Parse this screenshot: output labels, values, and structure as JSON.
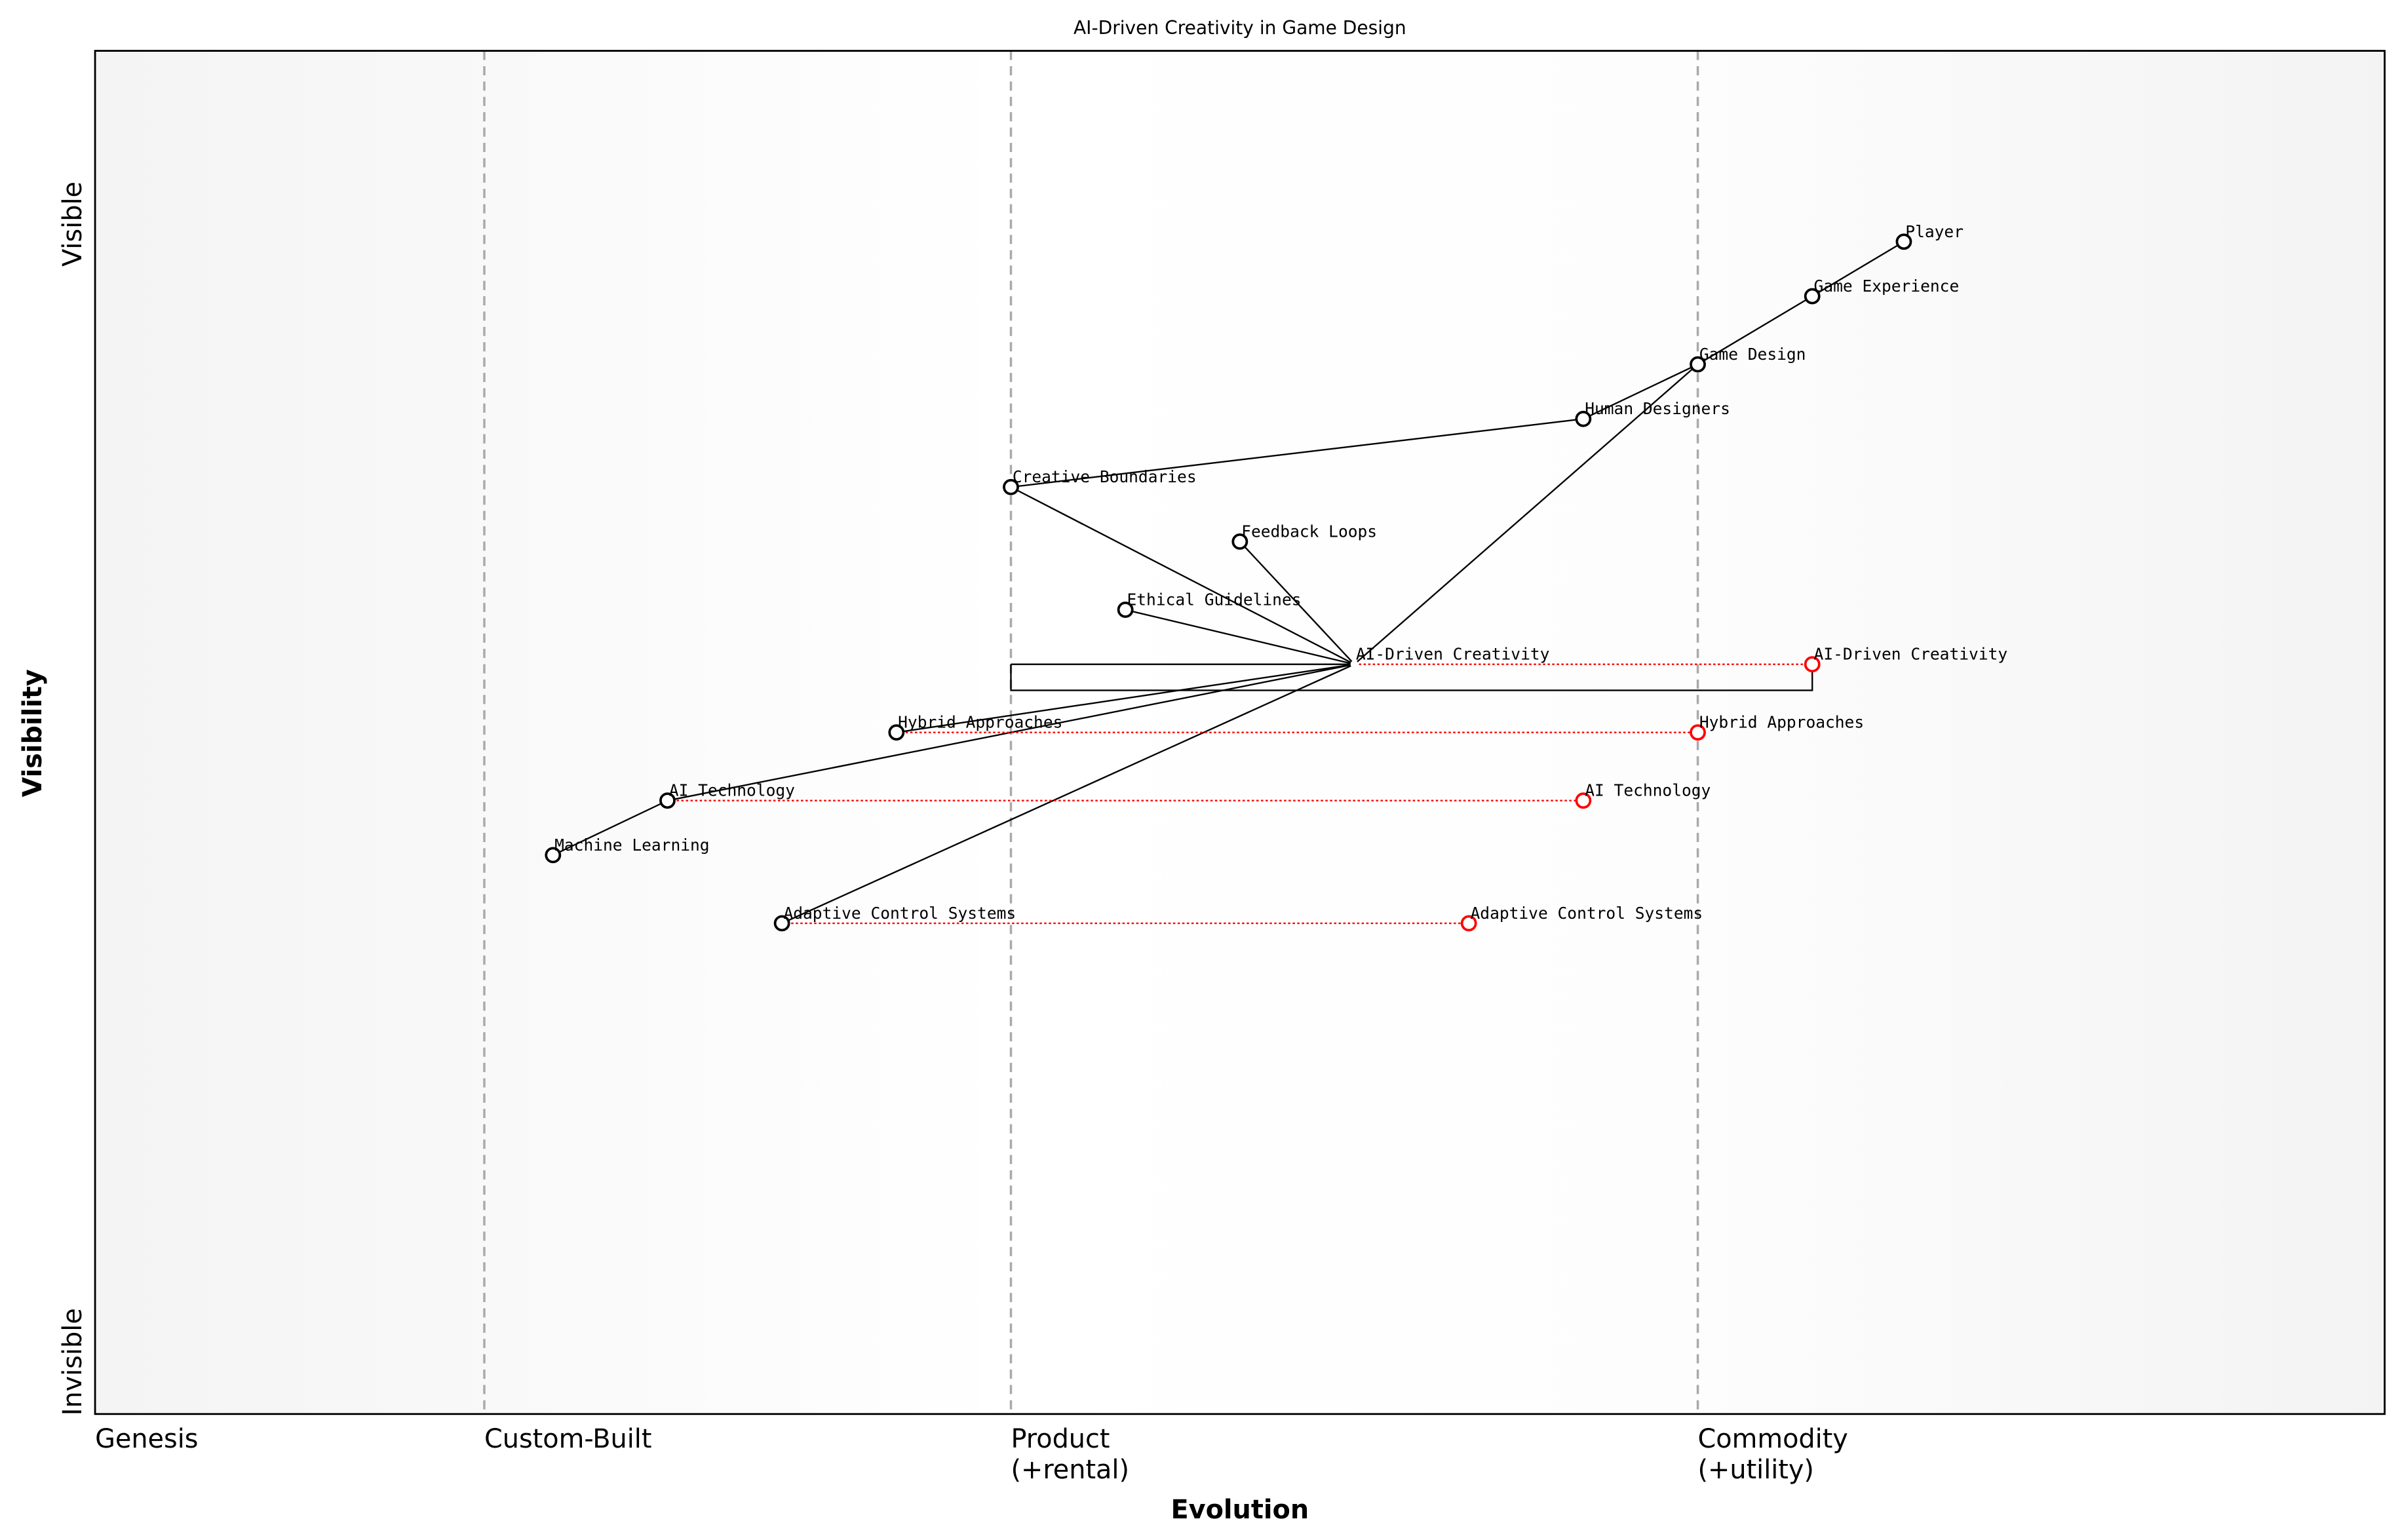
{
  "chart_data": {
    "type": "wardley-map",
    "title": "AI-Driven Creativity in Game Design",
    "xlabel": "Evolution",
    "ylabel": "Visibility",
    "y_ticks": {
      "low": "Invisible",
      "high": "Visible"
    },
    "stages": [
      {
        "label": "Genesis",
        "start": 0.0
      },
      {
        "label": "Custom-Built",
        "start": 0.17
      },
      {
        "label": "Product\n(+rental)",
        "start": 0.4
      },
      {
        "label": "Commodity\n(+utility)",
        "start": 0.7
      }
    ],
    "xlim": [
      0,
      1
    ],
    "ylim": [
      0,
      1
    ],
    "components": [
      {
        "name": "Player",
        "evolution": 0.79,
        "visibility": 0.86
      },
      {
        "name": "Game Experience",
        "evolution": 0.75,
        "visibility": 0.82
      },
      {
        "name": "Game Design",
        "evolution": 0.7,
        "visibility": 0.77
      },
      {
        "name": "Human Designers",
        "evolution": 0.65,
        "visibility": 0.73
      },
      {
        "name": "Creative Boundaries",
        "evolution": 0.4,
        "visibility": 0.68
      },
      {
        "name": "Feedback Loops",
        "evolution": 0.5,
        "visibility": 0.64
      },
      {
        "name": "Ethical Guidelines",
        "evolution": 0.45,
        "visibility": 0.59
      },
      {
        "name": "AI-Driven Creativity",
        "evolution": 0.55,
        "visibility": 0.55,
        "hidden_marker": true
      },
      {
        "name": "Hybrid Approaches",
        "evolution": 0.35,
        "visibility": 0.5
      },
      {
        "name": "AI Technology",
        "evolution": 0.25,
        "visibility": 0.45
      },
      {
        "name": "Machine Learning",
        "evolution": 0.2,
        "visibility": 0.41
      },
      {
        "name": "Adaptive Control Systems",
        "evolution": 0.3,
        "visibility": 0.36
      }
    ],
    "links": [
      [
        "Player",
        "Game Experience"
      ],
      [
        "Game Experience",
        "Game Design"
      ],
      [
        "Game Design",
        "Human Designers"
      ],
      [
        "Game Design",
        "AI-Driven Creativity"
      ],
      [
        "Human Designers",
        "Creative Boundaries"
      ],
      [
        "Creative Boundaries",
        "AI-Driven Creativity"
      ],
      [
        "Feedback Loops",
        "AI-Driven Creativity"
      ],
      [
        "Ethical Guidelines",
        "AI-Driven Creativity"
      ],
      [
        "AI-Driven Creativity",
        "Hybrid Approaches"
      ],
      [
        "AI-Driven Creativity",
        "AI Technology"
      ],
      [
        "AI-Driven Creativity",
        "Adaptive Control Systems"
      ],
      [
        "AI Technology",
        "Machine Learning"
      ]
    ],
    "evolve": [
      {
        "name": "AI-Driven Creativity",
        "evolution": 0.75
      },
      {
        "name": "Hybrid Approaches",
        "evolution": 0.7
      },
      {
        "name": "AI Technology",
        "evolution": 0.65
      },
      {
        "name": "Adaptive Control Systems",
        "evolution": 0.6
      }
    ],
    "pipeline": {
      "name": "AI-Driven Creativity",
      "start": 0.4,
      "end": 0.75
    },
    "colors": {
      "component": "#000000",
      "evolve": "#ff0000",
      "stage_line": "#aaaaaa"
    }
  }
}
